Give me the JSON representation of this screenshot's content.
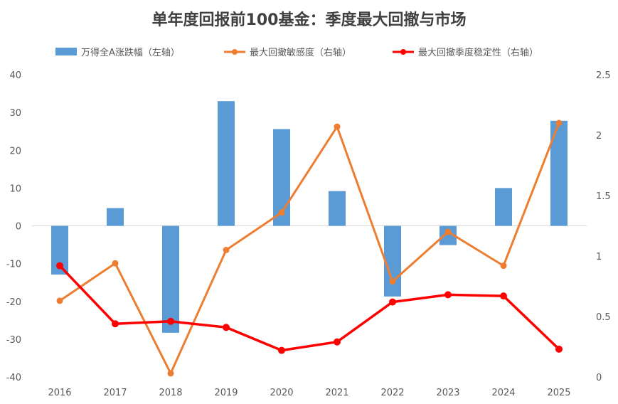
{
  "chart_data": {
    "type": "bar",
    "title": "单年度回报前100基金：季度最大回撤与市场",
    "categories": [
      "2016",
      "2017",
      "2018",
      "2019",
      "2020",
      "2021",
      "2022",
      "2023",
      "2024",
      "2025"
    ],
    "series": [
      {
        "name": "万得全A涨跌幅（左轴）",
        "type": "bar",
        "axis": "left",
        "color": "#5b9bd5",
        "values": [
          -12.9,
          4.7,
          -28.3,
          33.0,
          25.6,
          9.2,
          -18.7,
          -5.1,
          10.0,
          27.8
        ]
      },
      {
        "name": "最大回撤敏感度（右轴）",
        "type": "line",
        "axis": "right",
        "color": "#ed7d31",
        "values": [
          0.63,
          0.94,
          0.03,
          1.05,
          1.36,
          2.07,
          0.79,
          1.2,
          0.92,
          2.1
        ]
      },
      {
        "name": "最大回撤季度稳定性（右轴）",
        "type": "line",
        "axis": "right",
        "color": "#ff0000",
        "values": [
          0.92,
          0.44,
          0.46,
          0.41,
          0.22,
          0.29,
          0.62,
          0.68,
          0.67,
          0.23
        ]
      }
    ],
    "left_axis": {
      "min": -40,
      "max": 40,
      "step": 10,
      "ticks": [
        "40",
        "30",
        "20",
        "10",
        "0",
        "-10",
        "-20",
        "-30",
        "-40"
      ]
    },
    "right_axis": {
      "min": 0,
      "max": 2.5,
      "step": 0.5,
      "ticks": [
        "2.5",
        "2",
        "1.5",
        "1",
        "0.5",
        "0"
      ]
    },
    "legend_position": "top",
    "grid": false
  }
}
